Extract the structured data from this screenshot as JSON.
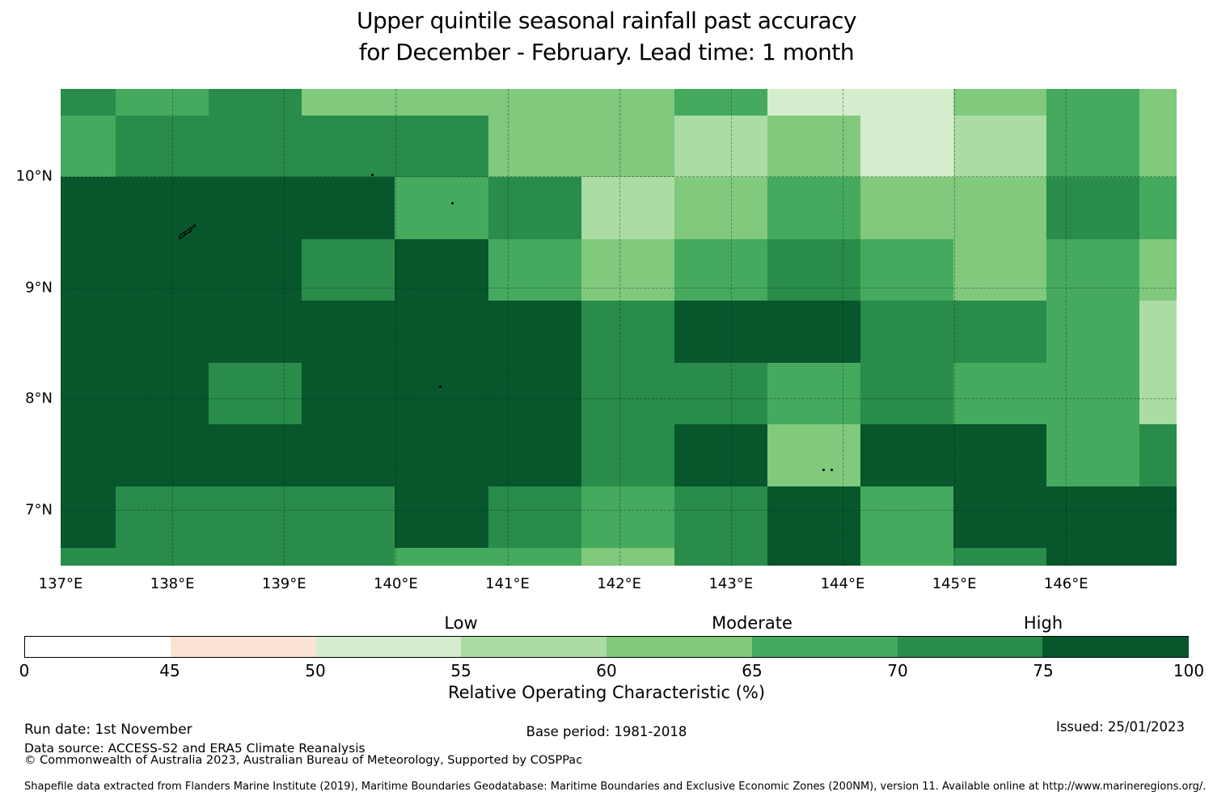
{
  "figure_title": {
    "line1": "Upper quintile seasonal rainfall past accuracy",
    "line2": "for December - February. Lead time: 1 month"
  },
  "chart_data": {
    "type": "heatmap",
    "title": "Upper quintile seasonal rainfall past accuracy for December - February. Lead time: 1 month",
    "colorbar_label": "Relative Operating Characteristic (%)",
    "legend_band_text": [
      "Low",
      "Moderate",
      "High"
    ],
    "lon_range": [
      137.0,
      146.99
    ],
    "lat_range": [
      6.5,
      10.785
    ],
    "x_ticks": {
      "labels": [
        "137°E",
        "138°E",
        "139°E",
        "140°E",
        "141°E",
        "142°E",
        "143°E",
        "144°E",
        "145°E",
        "146°E"
      ],
      "lons": [
        137,
        138,
        139,
        140,
        141,
        142,
        143,
        144,
        145,
        146
      ]
    },
    "y_ticks": {
      "labels": [
        "10°N",
        "9°N",
        "8°N",
        "7°N"
      ],
      "lats": [
        10,
        9,
        8,
        7
      ]
    },
    "grid_on": true,
    "lon_edges": [
      137.0,
      137.493,
      138.326,
      139.16,
      139.993,
      140.826,
      141.66,
      142.493,
      143.326,
      144.16,
      144.993,
      145.826,
      146.66,
      146.99
    ],
    "lat_edges": [
      10.785,
      10.545,
      9.99,
      9.434,
      8.879,
      8.323,
      7.768,
      7.212,
      6.657,
      6.5
    ],
    "values_roc_percent_bins": [
      [
        "70-75",
        "65-70",
        "70-75",
        "60-65",
        "60-65",
        "60-65",
        "60-65",
        "65-70",
        "50-55",
        "50-55",
        "60-65",
        "65-70",
        "60-65"
      ],
      [
        "65-70",
        "70-75",
        "70-75",
        "70-75",
        "70-75",
        "60-65",
        "60-65",
        "55-60",
        "60-65",
        "50-55",
        "55-60",
        "65-70",
        "60-65"
      ],
      [
        "75-100",
        "75-100",
        "75-100",
        "75-100",
        "65-70",
        "70-75",
        "55-60",
        "60-65",
        "65-70",
        "60-65",
        "60-65",
        "70-75",
        "65-70"
      ],
      [
        "75-100",
        "75-100",
        "75-100",
        "70-75",
        "75-100",
        "65-70",
        "60-65",
        "65-70",
        "70-75",
        "65-70",
        "60-65",
        "65-70",
        "60-65"
      ],
      [
        "75-100",
        "75-100",
        "75-100",
        "75-100",
        "75-100",
        "75-100",
        "70-75",
        "75-100",
        "75-100",
        "70-75",
        "70-75",
        "65-70",
        "55-60"
      ],
      [
        "75-100",
        "75-100",
        "70-75",
        "75-100",
        "75-100",
        "75-100",
        "70-75",
        "70-75",
        "65-70",
        "70-75",
        "65-70",
        "65-70",
        "55-60"
      ],
      [
        "75-100",
        "75-100",
        "75-100",
        "75-100",
        "75-100",
        "75-100",
        "70-75",
        "75-100",
        "60-65",
        "75-100",
        "75-100",
        "65-70",
        "70-75"
      ],
      [
        "75-100",
        "70-75",
        "70-75",
        "70-75",
        "75-100",
        "70-75",
        "65-70",
        "70-75",
        "75-100",
        "65-70",
        "75-100",
        "75-100",
        "75-100"
      ],
      [
        "70-75",
        "70-75",
        "70-75",
        "70-75",
        "65-70",
        "65-70",
        "60-65",
        "70-75",
        "75-100",
        "65-70",
        "70-75",
        "75-100",
        "75-100"
      ]
    ],
    "bin_colors": {
      "0-45": "#ffffff",
      "45-50": "#fbe3d4",
      "50-55": "#d5edcc",
      "55-60": "#abdca4",
      "60-65": "#80c97d",
      "65-70": "#45aa5e",
      "70-75": "#298c4a",
      "75-100": "#07562c"
    },
    "colorbar": {
      "tick_labels": [
        "0",
        "45",
        "50",
        "55",
        "60",
        "65",
        "70",
        "75",
        "100"
      ],
      "segments": [
        "0-45",
        "45-50",
        "50-55",
        "55-60",
        "60-65",
        "65-70",
        "70-75",
        "75-100"
      ],
      "band_labels": [
        {
          "text": "Low",
          "above_tick": "55"
        },
        {
          "text": "Moderate",
          "above_tick": "65"
        },
        {
          "text": "High",
          "above_tick": "75"
        }
      ]
    },
    "marks": [
      {
        "kind": "island",
        "lon": 138.12,
        "lat": 9.51
      },
      {
        "kind": "dot",
        "lon": 139.79,
        "lat": 10.01
      },
      {
        "kind": "dot",
        "lon": 140.51,
        "lat": 9.76
      },
      {
        "kind": "dot",
        "lon": 140.4,
        "lat": 8.11
      },
      {
        "kind": "dot",
        "lon": 143.83,
        "lat": 7.36
      },
      {
        "kind": "dot",
        "lon": 143.9,
        "lat": 7.36
      }
    ]
  },
  "footer": {
    "run_date": "Run date: 1st November",
    "base_period": "Base period: 1981-2018",
    "issued": "Issued: 25/01/2023",
    "data_source": "Data source: ACCESS-S2 and ERA5 Climate Reanalysis",
    "copyright": "© Commonwealth of Australia 2023, Australian Bureau of Meteorology, Supported by COSPPac",
    "shapefile_note": "Shapefile data extracted from Flanders Marine Institute (2019), Maritime Boundaries Geodatabase: Maritime Boundaries and Exclusive Economic Zones (200NM), version 11. Available online at http://www.marineregions.org/."
  }
}
